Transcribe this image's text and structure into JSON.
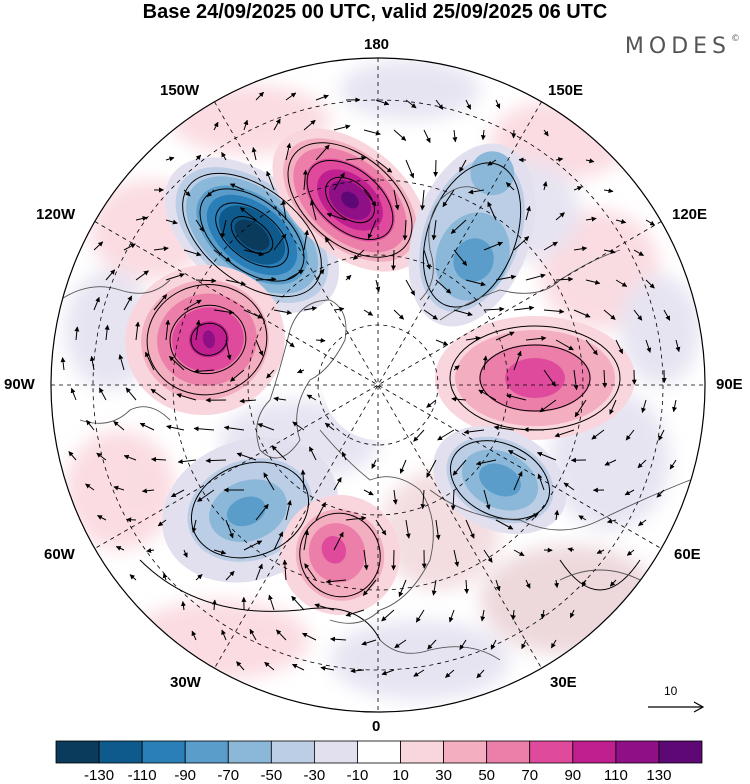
{
  "title": "Base 24/09/2025 00 UTC, valid 25/09/2025 06 UTC",
  "brand": "MODES",
  "brand_mark": "©",
  "longitude_labels": {
    "deg180": "180",
    "deg150w": "150W",
    "deg150e": "150E",
    "deg120w": "120W",
    "deg120e": "120E",
    "deg90w": "90W",
    "deg90e": "90E",
    "deg60w": "60W",
    "deg60e": "60E",
    "deg30w": "30W",
    "deg30e": "30E",
    "deg0": "0"
  },
  "reference_vector": {
    "label": "10"
  },
  "colorbar": {
    "colors": [
      "#0a3a5c",
      "#0f5a8c",
      "#2b7fb8",
      "#5a9dcb",
      "#8bb8d9",
      "#bccde6",
      "#e2e0ef",
      "#ffffff",
      "#f9d6dd",
      "#f3aec0",
      "#ec7fa9",
      "#df4a9d",
      "#c01f8f",
      "#8e0f86",
      "#5e0875"
    ],
    "ticks": [
      "-130",
      "-110",
      "-90",
      "-70",
      "-50",
      "-30",
      "-10",
      "10",
      "30",
      "50",
      "70",
      "90",
      "110",
      "130"
    ]
  },
  "colors": {
    "background": "#ffffff",
    "land_outline": "#555555",
    "grid": "#000000"
  }
}
